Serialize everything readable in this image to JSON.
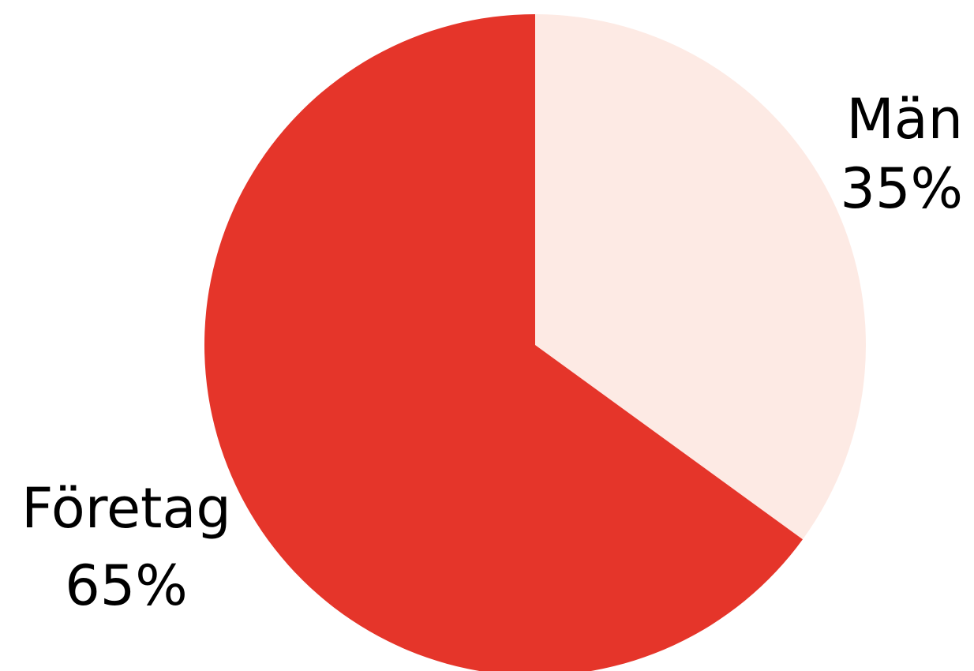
{
  "chart_data": {
    "type": "pie",
    "title": "",
    "start_angle_deg": 0,
    "direction": "clockwise",
    "legend": "none",
    "slices": [
      {
        "label": "Män",
        "value": 35,
        "value_label": "35%",
        "color": "#FDEAE4"
      },
      {
        "label": "Företag",
        "value": 65,
        "value_label": "65%",
        "color": "#E5352A"
      }
    ]
  }
}
